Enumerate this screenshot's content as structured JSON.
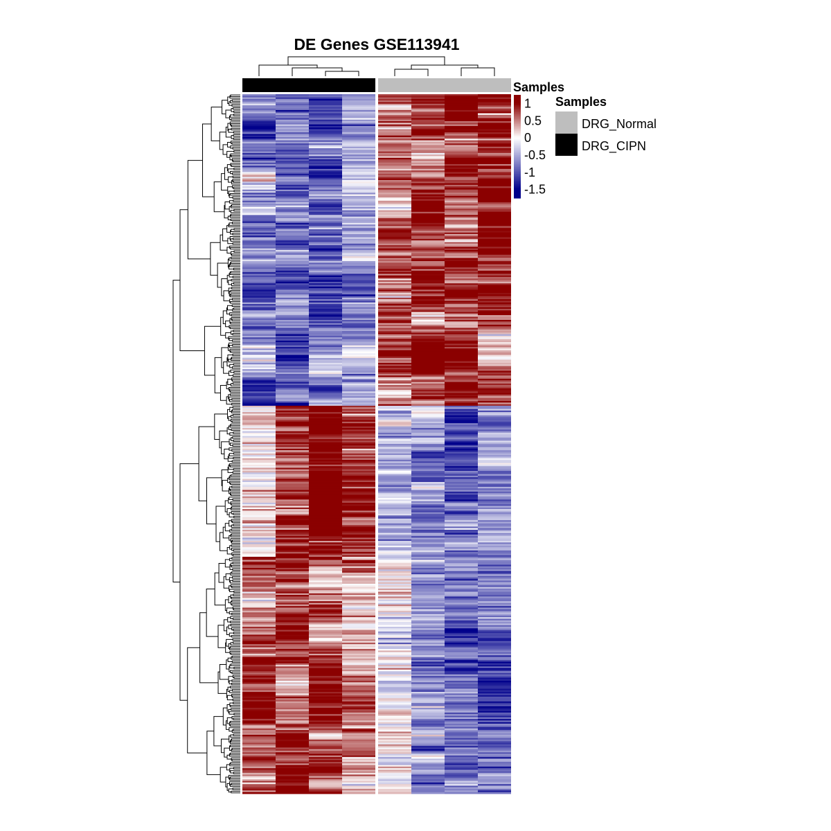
{
  "chart_data": {
    "type": "heatmap",
    "title": "DE Genes GSE113941",
    "n_genes": 440,
    "samples": [
      {
        "group": "DRG_CIPN"
      },
      {
        "group": "DRG_CIPN"
      },
      {
        "group": "DRG_CIPN"
      },
      {
        "group": "DRG_CIPN"
      },
      {
        "group": "DRG_Normal"
      },
      {
        "group": "DRG_Normal"
      },
      {
        "group": "DRG_Normal"
      },
      {
        "group": "DRG_Normal"
      }
    ],
    "annotation": {
      "title": "Samples",
      "entries": [
        {
          "label": "DRG_Normal",
          "color": "#bebebe"
        },
        {
          "label": "DRG_CIPN",
          "color": "#000000"
        }
      ]
    },
    "colorbar": {
      "title": "Samples",
      "ticks": [
        1,
        0.5,
        0,
        -0.5,
        -1,
        -1.5
      ],
      "tick_labels": [
        "1",
        "0.5",
        "0",
        "-0.5",
        "-1",
        "-1.5"
      ],
      "range": [
        -1.75,
        1.25
      ],
      "colors": {
        "low": "#00008b",
        "mid": "#ffffff",
        "high": "#8b0000"
      }
    },
    "gene_blocks": [
      {
        "fraction": 0.445,
        "means": [
          -0.7,
          -0.8,
          -0.9,
          -0.7,
          0.5,
          0.9,
          1.0,
          0.9
        ]
      },
      {
        "fraction": 0.215,
        "means": [
          0.1,
          0.8,
          1.1,
          0.9,
          -0.4,
          -0.6,
          -0.9,
          -0.6
        ]
      },
      {
        "fraction": 0.34,
        "means": [
          0.8,
          0.8,
          0.7,
          0.5,
          -0.2,
          -0.6,
          -0.9,
          -0.7
        ]
      }
    ]
  }
}
